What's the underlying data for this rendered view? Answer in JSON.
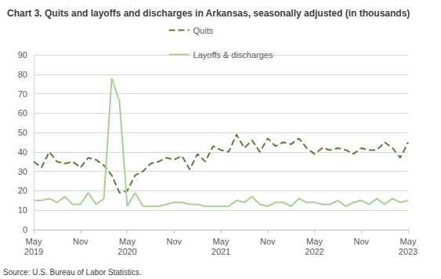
{
  "chart_data": {
    "type": "line",
    "title": "Chart 3. Quits and layoffs and discharges in Arkansas, seasonally adjusted (in thousands)",
    "source": "Source: U.S. Bureau of Labor Statistics.",
    "categories": [
      "May\n2019",
      null,
      null,
      null,
      null,
      null,
      "Nov",
      null,
      null,
      null,
      null,
      null,
      "May\n2020",
      null,
      null,
      null,
      null,
      null,
      "Nov",
      null,
      null,
      null,
      null,
      null,
      "May\n2021",
      null,
      null,
      null,
      null,
      null,
      "Nov",
      null,
      null,
      null,
      null,
      null,
      "May\n2022",
      null,
      null,
      null,
      null,
      null,
      "Nov",
      null,
      null,
      null,
      null,
      null,
      "May\n2023"
    ],
    "series": [
      {
        "name": "Quits",
        "color": "#548235",
        "line_style": "dashed",
        "values": [
          35,
          32,
          40,
          35,
          34,
          35,
          32,
          37,
          36,
          33,
          28,
          19,
          20,
          28,
          30,
          34,
          35,
          37,
          36,
          38,
          31,
          39,
          35,
          43,
          41,
          40,
          49,
          42,
          46,
          40,
          47,
          43,
          45,
          44,
          47,
          42,
          39,
          42,
          41,
          42,
          41,
          39,
          42,
          41,
          41,
          45,
          42,
          37,
          45
        ]
      },
      {
        "name": "Layoffs & discharges",
        "color": "#a9d18e",
        "line_style": "solid",
        "values": [
          15,
          15,
          16,
          14,
          17,
          13,
          13,
          19,
          13,
          16,
          78,
          66,
          12,
          19,
          12,
          12,
          12,
          13,
          14,
          14,
          13,
          13,
          12,
          12,
          12,
          12,
          15,
          14,
          17,
          13,
          12,
          14,
          14,
          12,
          16,
          14,
          14,
          13,
          13,
          15,
          12,
          14,
          15,
          13,
          16,
          13,
          16,
          14,
          15
        ]
      }
    ],
    "ylim": [
      0,
      90
    ],
    "yticks": [
      0,
      10,
      20,
      30,
      40,
      50,
      60,
      70,
      80,
      90
    ],
    "grid": true,
    "legend": "top"
  }
}
